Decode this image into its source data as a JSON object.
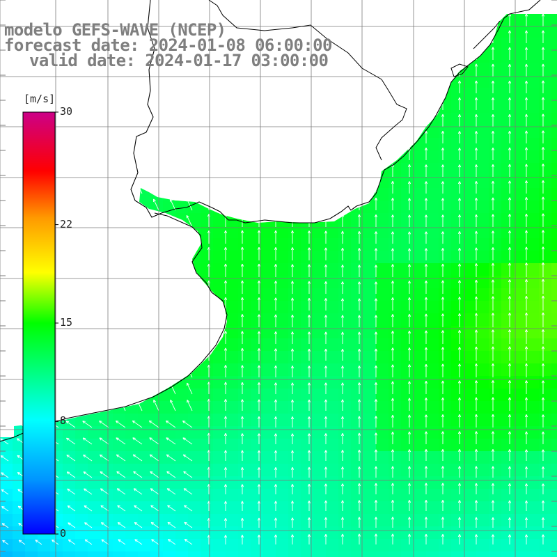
{
  "title": {
    "model": "modelo GEFS-WAVE (NCEP)",
    "forecast": "forecast date: 2024-01-08 06:00:00",
    "valid": "valid date: 2024-01-17 03:00:00"
  },
  "colorbar": {
    "unit": "[m/s]",
    "ticks": [
      "30",
      "22",
      "15",
      "8",
      "0"
    ],
    "tick_values": [
      30,
      22,
      15,
      8,
      0
    ],
    "colors": [
      "#0000ff",
      "#0096ff",
      "#00ffff",
      "#00ff00",
      "#ffff00",
      "#ff9900",
      "#ff0000",
      "#cc0099"
    ],
    "range": [
      0,
      30
    ]
  },
  "map": {
    "variable": "wind speed and direction",
    "land_color": "#ffffff",
    "grid_color": "#7a7a7a",
    "arrow_color": "#ffffff",
    "coast_color": "#000000"
  }
}
